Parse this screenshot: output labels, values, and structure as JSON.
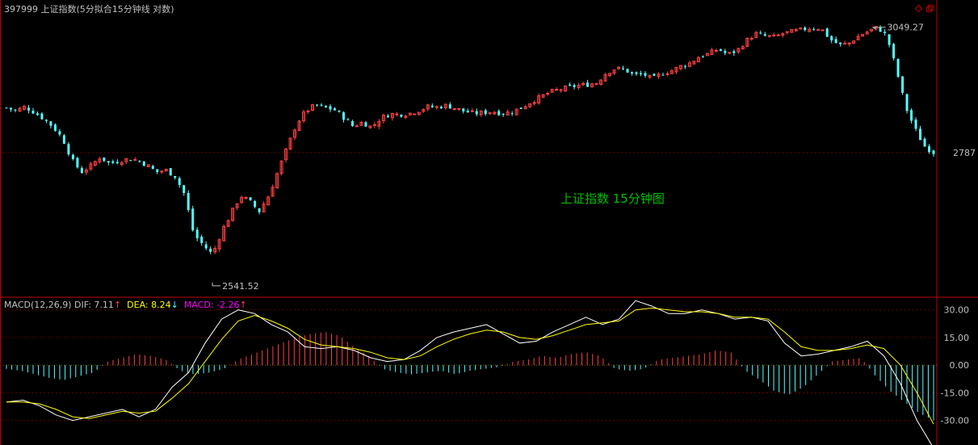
{
  "header": {
    "title": "397999 上证指数(5分拟合15分钟线 对数)"
  },
  "window_controls": [
    "restore-icon",
    "maximize-icon"
  ],
  "colors": {
    "background": "#000000",
    "frame": "#c00000",
    "grid": "#6e0000",
    "up": "#ff4040",
    "down": "#54ffff",
    "dif_line": "#ffffff",
    "dea_line": "#ffff00",
    "label_green": "#00c000",
    "axis_text": "#c0c0c0",
    "macd_text": "#ff00ff"
  },
  "chart_data": [
    {
      "type": "candlestick",
      "title": "",
      "annotation": "上证指数 15分钟图",
      "scale": "log",
      "y_ticks": [
        2787
      ],
      "high_label": "3049.27",
      "low_label": "2541.52",
      "ylim": [
        2515,
        3070
      ],
      "candles_close_outline": [
        2878,
        2872,
        2880,
        2868,
        2855,
        2838,
        2815,
        2772,
        2748,
        2760,
        2778,
        2765,
        2770,
        2774,
        2772,
        2762,
        2748,
        2752,
        2740,
        2705,
        2628,
        2608,
        2590,
        2634,
        2668,
        2702,
        2690,
        2672,
        2702,
        2750,
        2798,
        2846,
        2872,
        2883,
        2878,
        2874,
        2858,
        2840,
        2848,
        2838,
        2857,
        2865,
        2864,
        2866,
        2872,
        2880,
        2879,
        2883,
        2876,
        2870,
        2866,
        2868,
        2870,
        2866,
        2870,
        2878,
        2890,
        2900,
        2910,
        2916,
        2920,
        2924,
        2926,
        2930,
        2950,
        2960,
        2958,
        2946,
        2948,
        2938,
        2950,
        2955,
        2965,
        2972,
        2986,
        2992,
        3002,
        2990,
        2998,
        3020,
        3035,
        3030,
        3028,
        3036,
        3040,
        3044,
        3048,
        3046,
        3022,
        3010,
        3015,
        3030,
        3040,
        3049,
        3030,
        2960,
        2880,
        2835,
        2800,
        2787
      ]
    },
    {
      "type": "line",
      "title": "",
      "indicator": "MACD(12,26,9)",
      "legend": {
        "dif": "DIF: 7.11",
        "dif_arrow": "↑",
        "dea": "DEA: 8.24",
        "dea_arrow": "↓",
        "macd": "MACD: -2.26",
        "macd_arrow": "↑"
      },
      "y_ticks": [
        "30.00",
        "15.00",
        "0.00",
        "-15.00",
        "-30.00"
      ],
      "y_tick_values": [
        30,
        15,
        0,
        -15,
        -30
      ],
      "ylim": [
        -42,
        36
      ],
      "series": [
        {
          "name": "DIF",
          "values": [
            -20,
            -19,
            -22,
            -27,
            -30,
            -28,
            -26,
            -24,
            -28,
            -24,
            -12,
            -4,
            12,
            25,
            30,
            28,
            22,
            18,
            10,
            9,
            10,
            8,
            4,
            2,
            3,
            8,
            15,
            18,
            20,
            22,
            17,
            12,
            13,
            18,
            22,
            26,
            22,
            25,
            35,
            32,
            28,
            28,
            30,
            28,
            25,
            26,
            24,
            12,
            5,
            6,
            8,
            10,
            13,
            5,
            -10,
            -30,
            -45
          ]
        },
        {
          "name": "DEA",
          "values": [
            -20,
            -20,
            -21,
            -24,
            -28,
            -29,
            -27,
            -25,
            -26,
            -25,
            -18,
            -10,
            2,
            14,
            24,
            27,
            24,
            20,
            14,
            11,
            10,
            9,
            7,
            4,
            3,
            5,
            10,
            14,
            17,
            19,
            18,
            15,
            14,
            16,
            19,
            22,
            23,
            24,
            30,
            31,
            30,
            29,
            29,
            28,
            26,
            26,
            25,
            18,
            10,
            8,
            8,
            9,
            11,
            9,
            0,
            -15,
            -32
          ]
        }
      ],
      "histogram": [
        -2,
        -3,
        -5,
        -7,
        -8,
        -6,
        -4,
        2,
        4,
        6,
        5,
        3,
        -3,
        -5,
        -4,
        -2,
        3,
        6,
        9,
        12,
        15,
        17,
        18,
        16,
        10,
        5,
        -2,
        -4,
        -5,
        -4,
        -3,
        -5,
        -3,
        -2,
        -1,
        2,
        3,
        5,
        4,
        6,
        7,
        5,
        -2,
        -3,
        -2,
        3,
        4,
        5,
        6,
        8,
        7,
        -3,
        -8,
        -14,
        -16,
        -12,
        -5,
        2,
        3,
        4,
        -6,
        -14,
        -20,
        -26,
        -30
      ]
    }
  ]
}
